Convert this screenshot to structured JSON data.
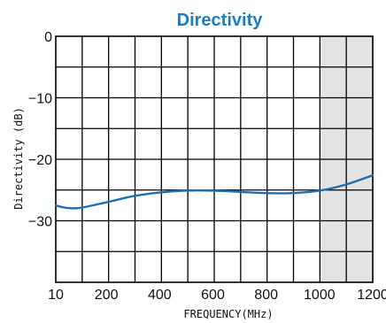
{
  "chart_data": {
    "type": "line",
    "title": "Directivity",
    "xlabel": "FREQUENCY(MHz)",
    "ylabel": "Directivity (dB)",
    "x_ticks": [
      10,
      200,
      400,
      600,
      800,
      1000,
      1200
    ],
    "x_tick_labels": [
      "10",
      "200",
      "400",
      "600",
      "800",
      "1000",
      "1200"
    ],
    "y_ticks": [
      0,
      -10,
      -20,
      -30
    ],
    "y_tick_labels": [
      "0",
      "−10",
      "−20",
      "−30"
    ],
    "xlim": [
      10,
      1200
    ],
    "ylim": [
      -40,
      0
    ],
    "grid": true,
    "shaded_region": [
      1000,
      1200
    ],
    "series": [
      {
        "color": "#1f6fae",
        "x": [
          10,
          50,
          100,
          200,
          300,
          400,
          500,
          600,
          700,
          800,
          900,
          1000,
          1100,
          1200
        ],
        "y": [
          -27.5,
          -27.9,
          -27.9,
          -27.0,
          -26.0,
          -25.4,
          -25.1,
          -25.1,
          -25.3,
          -25.5,
          -25.5,
          -25.1,
          -24.1,
          -22.6
        ]
      }
    ],
    "colors": {
      "title": "#1a7fc1",
      "line": "#1f6fae",
      "shade": "#e3e3e3",
      "grid": "#000000"
    }
  }
}
